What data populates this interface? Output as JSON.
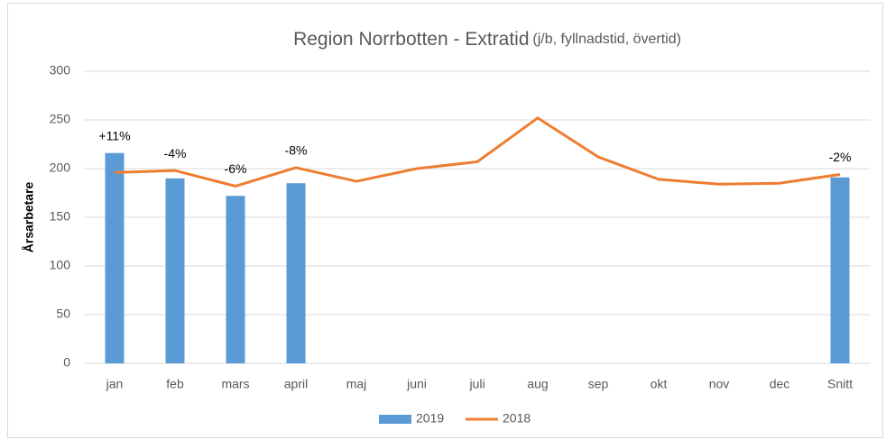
{
  "chart_data": {
    "type": "bar",
    "title": "Region Norrbotten - Extratid",
    "subtitle": "(j/b, fyllnadstid, övertid)",
    "y_label": "Årsarbetare",
    "categories": [
      "jan",
      "feb",
      "mars",
      "april",
      "maj",
      "juni",
      "juli",
      "aug",
      "sep",
      "okt",
      "nov",
      "dec",
      "Snitt"
    ],
    "series": [
      {
        "name": "2019",
        "type": "bar",
        "color": "#5b9bd5",
        "values": [
          216,
          190,
          172,
          185,
          null,
          null,
          null,
          null,
          null,
          null,
          null,
          null,
          191
        ]
      },
      {
        "name": "2018",
        "type": "line",
        "color": "#ed7d31",
        "values": [
          196,
          198,
          182,
          201,
          187,
          200,
          207,
          252,
          212,
          189,
          184,
          185,
          194
        ]
      }
    ],
    "annotations": [
      "+11%",
      "-4%",
      "-6%",
      "-8%",
      null,
      null,
      null,
      null,
      null,
      null,
      null,
      null,
      "-2%"
    ],
    "ylim": [
      0,
      300
    ],
    "yticks": [
      0,
      50,
      100,
      150,
      200,
      250,
      300
    ],
    "grid": true,
    "legend": "bottom"
  }
}
